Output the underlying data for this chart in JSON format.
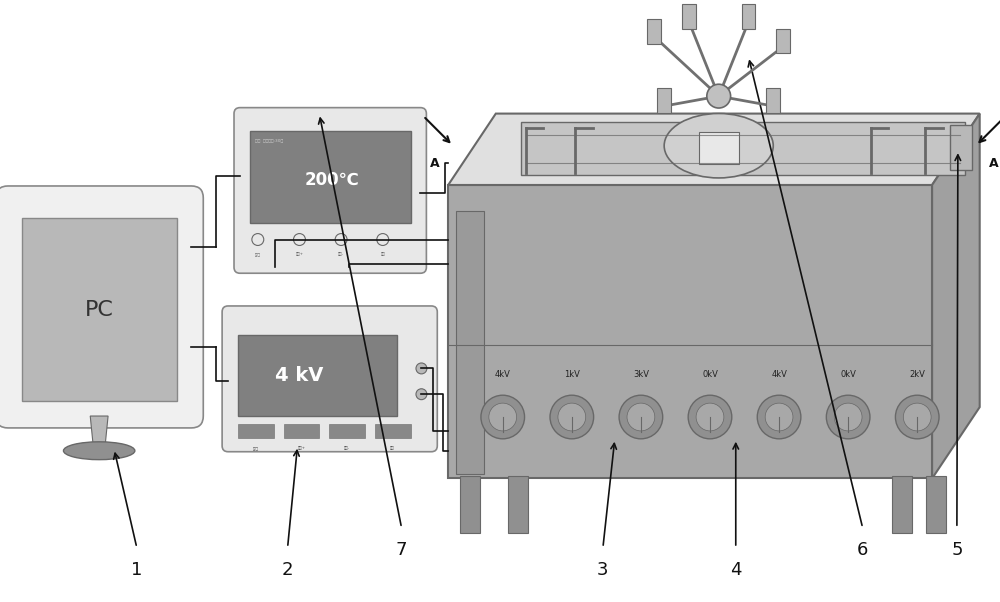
{
  "bg_color": "#ffffff",
  "fig_width": 10.0,
  "fig_height": 6.02,
  "gray_light": "#e0e0e0",
  "gray_med": "#b8b8b8",
  "gray_dark": "#888888",
  "gray_darker": "#686868",
  "gray_display": "#808080",
  "gray_box": "#a8a8a8",
  "black": "#111111",
  "white": "#ffffff",
  "kV_labels": [
    "4kV",
    "1kV",
    "3kV",
    "0kV",
    "4kV",
    "0kV",
    "2kV"
  ]
}
